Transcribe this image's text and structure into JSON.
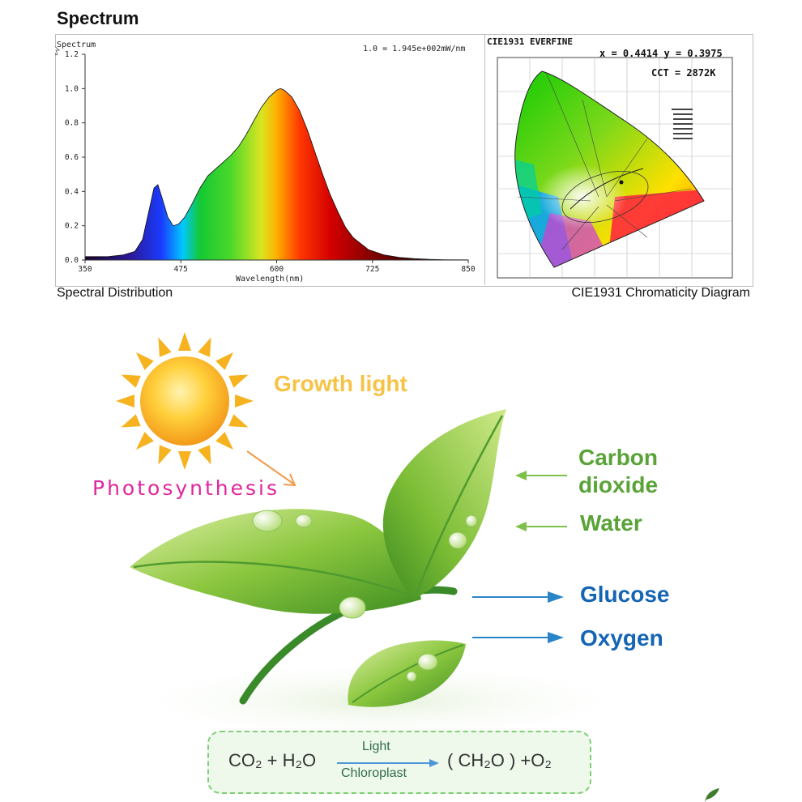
{
  "header": {
    "title": "Spectrum"
  },
  "captions": {
    "left": "Spectral Distribution",
    "right": "CIE1931 Chromaticity Diagram"
  },
  "chart_data": [
    {
      "type": "area",
      "title": "Spectrum",
      "annotation": "1.0 = 1.945e+002mW/nm",
      "xlabel": "Wavelength(nm)",
      "ylabel": "",
      "xlim": [
        350,
        850
      ],
      "ylim": [
        0,
        1.2
      ],
      "xticks": [
        "350",
        "475",
        "600",
        "725",
        "850"
      ],
      "yticks": [
        "0.0",
        "0.2",
        "0.4",
        "0.6",
        "0.8",
        "1.0",
        "1.2"
      ],
      "grid": false,
      "x": [
        350,
        380,
        400,
        415,
        425,
        435,
        440,
        445,
        450,
        458,
        465,
        472,
        480,
        490,
        500,
        510,
        520,
        530,
        540,
        550,
        560,
        570,
        580,
        590,
        600,
        605,
        610,
        620,
        630,
        640,
        650,
        660,
        670,
        680,
        690,
        700,
        720,
        740,
        760,
        780,
        800,
        820,
        850
      ],
      "y": [
        0.02,
        0.02,
        0.03,
        0.05,
        0.12,
        0.32,
        0.42,
        0.44,
        0.37,
        0.25,
        0.2,
        0.21,
        0.25,
        0.33,
        0.42,
        0.49,
        0.53,
        0.57,
        0.61,
        0.66,
        0.73,
        0.81,
        0.89,
        0.95,
        0.99,
        1.0,
        0.99,
        0.95,
        0.87,
        0.76,
        0.63,
        0.5,
        0.38,
        0.28,
        0.19,
        0.13,
        0.06,
        0.03,
        0.015,
        0.008,
        0.004,
        0.002,
        0.001
      ]
    },
    {
      "type": "scatter",
      "title": "CIE1931 EVERFINE",
      "x": [
        0.4414
      ],
      "y": [
        0.3975
      ],
      "xy_label": "x = 0.4414 y = 0.3975",
      "cct_label": "CCT = 2872K"
    }
  ],
  "infographic": {
    "growth_light": "Growth light",
    "photosynthesis": "Photosynthesis",
    "inputs": [
      "Carbon dioxide",
      "Water"
    ],
    "outputs": [
      "Glucose",
      "Oxygen"
    ],
    "formula": {
      "left": "CO₂ + H₂O",
      "top": "Light",
      "bottom": "Chloroplast",
      "right": "( CH₂O ) +O₂"
    }
  }
}
